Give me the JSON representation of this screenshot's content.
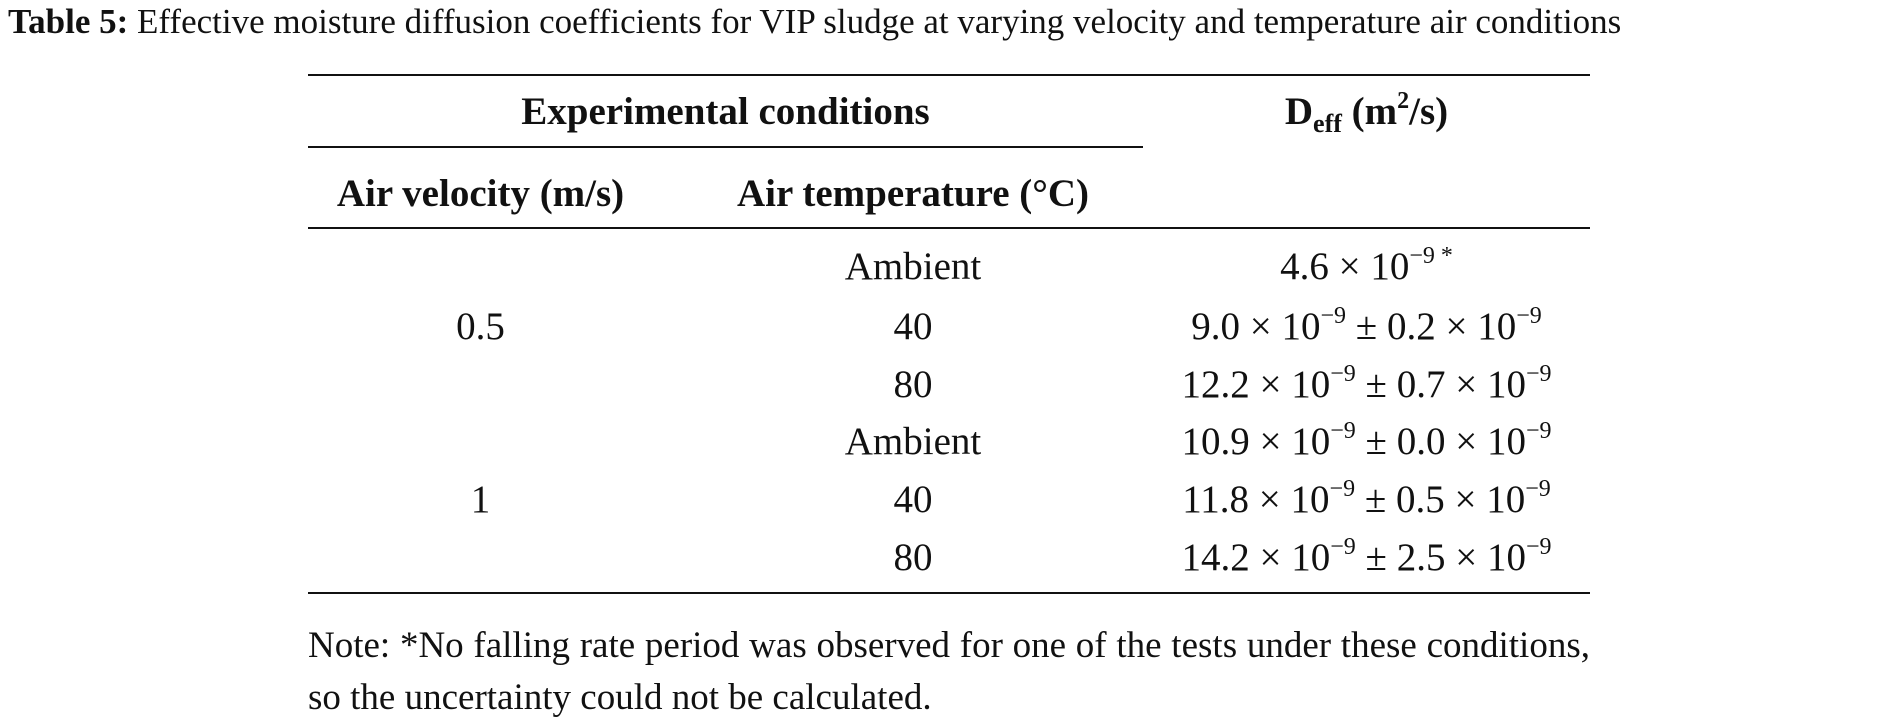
{
  "caption": {
    "label": "Table 5:",
    "text": "Effective moisture diffusion coefficients for VIP sludge at varying velocity and temperature air conditions"
  },
  "table": {
    "group_header": "Experimental conditions",
    "col_velocity": "Air velocity (m/s)",
    "col_temperature": "Air temperature (°C)",
    "col_deff": {
      "main": "D",
      "sub": "eff",
      "unit_pre": " (m",
      "unit_sup": "2",
      "unit_post": "/s)"
    },
    "groups": [
      {
        "velocity": "0.5",
        "rows": [
          {
            "temperature": "Ambient",
            "value": "4.6 × 10",
            "exp": "−9",
            "star": " *",
            "unc": "",
            "unc_exp": ""
          },
          {
            "temperature": "40",
            "value": "9.0 × 10",
            "exp": "−9",
            "star": "",
            "unc": " ± 0.2 × 10",
            "unc_exp": "−9"
          },
          {
            "temperature": "80",
            "value": "12.2 × 10",
            "exp": "−9",
            "star": "",
            "unc": " ± 0.7 × 10",
            "unc_exp": "−9"
          }
        ]
      },
      {
        "velocity": "1",
        "rows": [
          {
            "temperature": "Ambient",
            "value": "10.9 × 10",
            "exp": "−9",
            "star": "",
            "unc": " ± 0.0 × 10",
            "unc_exp": "−9"
          },
          {
            "temperature": "40",
            "value": "11.8 × 10",
            "exp": "−9",
            "star": "",
            "unc": " ± 0.5 × 10",
            "unc_exp": "−9"
          },
          {
            "temperature": "80",
            "value": "14.2 × 10",
            "exp": "−9",
            "star": "",
            "unc": " ± 2.5 × 10",
            "unc_exp": "−9"
          }
        ]
      }
    ]
  },
  "note": "Note: *No falling rate period was observed for one of the tests under these conditions, so the uncertainty could not be calculated."
}
